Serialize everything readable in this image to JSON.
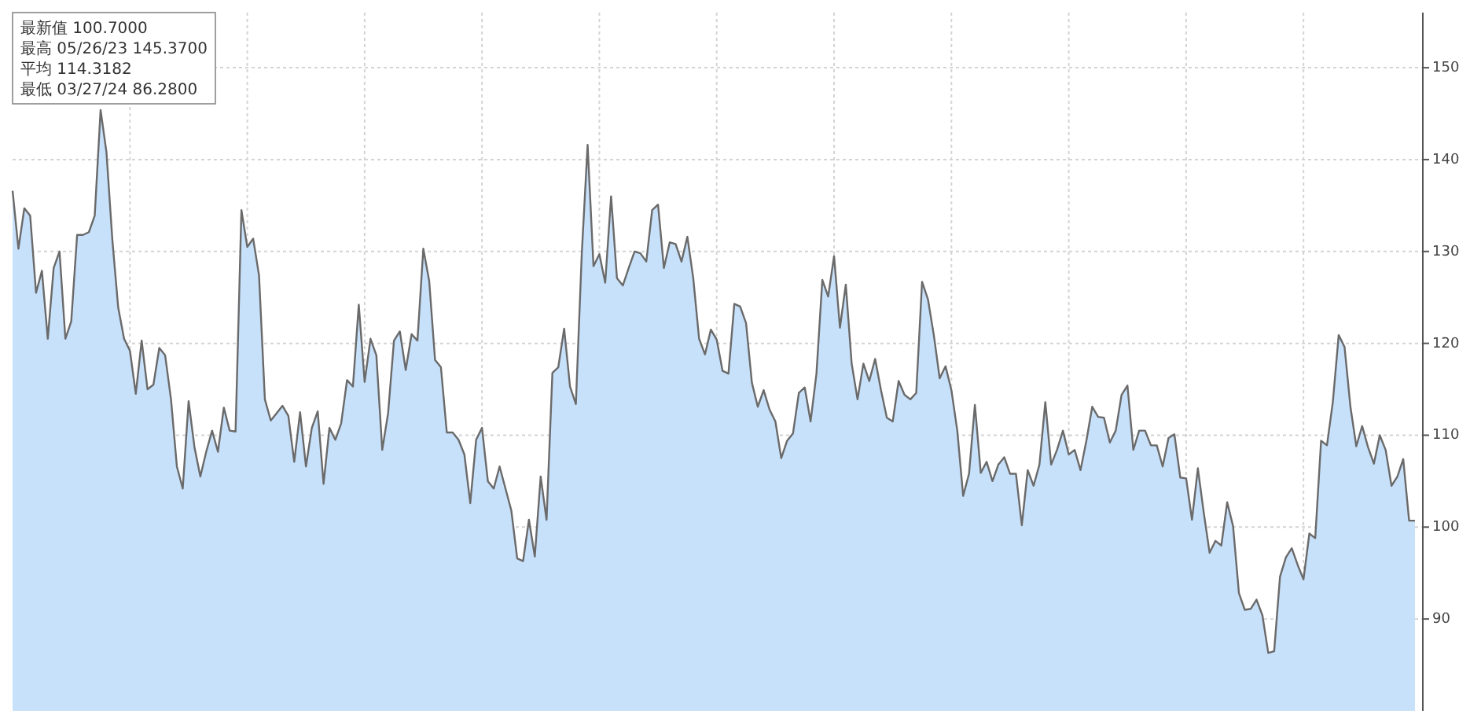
{
  "chart_data": {
    "type": "area",
    "annotations": [
      "最新值 100.7000",
      "最高 05/26/23 145.3700",
      "平均 114.3182",
      "最低 03/27/24 86.2800"
    ],
    "categories": [
      null,
      null,
      null,
      null,
      null,
      null,
      null,
      null,
      null,
      null,
      null,
      null,
      null,
      null,
      null,
      null,
      null,
      null,
      null,
      null,
      null,
      null,
      null,
      null,
      null,
      null,
      null,
      null,
      null,
      null,
      null,
      null,
      null,
      null,
      null,
      null,
      null,
      null,
      null,
      null,
      null,
      null,
      null,
      null,
      null,
      null,
      null,
      null,
      null,
      null,
      null,
      null,
      null,
      null,
      null,
      null,
      null,
      null,
      null,
      null,
      null,
      null,
      null,
      null,
      null,
      null,
      null,
      null,
      null,
      null,
      null,
      null,
      null,
      null,
      null,
      null,
      null,
      null,
      null,
      null,
      null,
      null,
      null,
      null,
      null,
      null,
      null,
      null,
      null,
      null,
      null,
      null,
      null,
      null,
      null,
      null,
      null,
      null,
      null,
      null,
      null,
      null,
      null,
      null,
      null,
      null,
      null,
      null,
      null,
      null,
      null,
      null,
      null,
      null,
      null,
      null,
      null,
      null,
      null,
      null,
      null,
      null,
      null,
      null,
      null,
      null,
      null,
      null,
      null,
      null,
      null,
      null,
      null,
      null,
      null,
      null,
      null,
      null,
      null,
      null,
      null,
      null,
      null,
      null,
      null,
      null,
      null,
      null,
      null,
      null,
      null,
      null,
      null,
      null,
      null,
      null,
      null,
      null,
      null,
      null,
      null,
      null,
      null,
      null,
      null,
      null,
      null,
      null,
      null,
      null,
      null,
      null,
      null,
      null,
      null,
      null,
      null,
      null,
      null,
      null,
      null,
      null,
      null,
      null,
      null,
      null,
      null,
      null,
      null,
      null,
      null,
      null,
      null,
      null,
      null,
      null,
      null,
      null,
      null,
      null,
      null,
      null,
      null,
      null,
      null,
      null,
      null,
      null,
      null,
      null,
      null,
      null,
      null,
      null,
      null,
      null,
      null,
      null,
      null,
      null,
      null,
      null,
      null,
      null,
      null,
      null,
      null,
      null,
      null,
      null,
      null,
      null,
      null,
      null,
      null,
      null,
      null,
      null,
      null,
      null
    ],
    "series": [
      {
        "color": "#c8e1fb",
        "values": [
          136.6,
          130.3,
          134.7,
          133.9,
          125.5,
          127.9,
          120.5,
          128.2,
          130.0,
          120.5,
          122.4,
          131.8,
          131.8,
          132.1,
          133.9,
          145.4,
          140.8,
          131.3,
          123.9,
          120.5,
          119.2,
          114.5,
          120.3,
          115.0,
          115.5,
          119.5,
          118.7,
          113.9,
          106.6,
          104.2,
          113.7,
          108.7,
          105.5,
          108.2,
          110.5,
          108.2,
          113.0,
          110.5,
          110.4,
          134.5,
          130.5,
          131.4,
          127.4,
          113.9,
          111.6,
          112.4,
          113.2,
          112.1,
          107.1,
          112.5,
          106.6,
          110.8,
          112.6,
          104.7,
          110.8,
          109.5,
          111.3,
          116.0,
          115.3,
          124.2,
          115.8,
          120.5,
          118.7,
          108.4,
          112.4,
          120.3,
          121.3,
          117.1,
          121.0,
          120.3,
          130.3,
          126.8,
          118.2,
          117.4,
          110.3,
          110.3,
          109.5,
          107.9,
          102.6,
          109.5,
          110.8,
          105.0,
          104.2,
          106.6,
          104.2,
          101.8,
          96.6,
          96.3,
          100.8,
          96.8,
          105.5,
          100.8,
          116.8,
          117.4,
          121.6,
          115.3,
          113.4,
          129.7,
          141.6,
          128.4,
          129.7,
          126.6,
          136.0,
          127.1,
          126.3,
          128.2,
          130.0,
          129.8,
          128.9,
          134.5,
          135.1,
          128.2,
          131.0,
          130.8,
          128.9,
          131.6,
          127.1,
          120.5,
          118.8,
          121.5,
          120.4,
          117.0,
          116.7,
          124.3,
          124.0,
          122.2,
          115.7,
          113.1,
          114.9,
          112.8,
          111.5,
          107.5,
          109.4,
          110.2,
          114.6,
          115.2,
          111.5,
          116.7,
          126.9,
          125.1,
          129.5,
          121.7,
          126.4,
          117.8,
          113.9,
          117.8,
          115.9,
          118.3,
          114.9,
          111.9,
          111.5,
          115.9,
          114.4,
          113.9,
          114.6,
          126.7,
          124.8,
          120.9,
          116.2,
          117.5,
          114.9,
          110.5,
          103.4,
          105.8,
          113.3,
          105.9,
          107.1,
          105.0,
          106.8,
          107.6,
          105.8,
          105.8,
          100.2,
          106.2,
          104.5,
          106.8,
          113.6,
          106.8,
          108.4,
          110.5,
          107.9,
          108.4,
          106.2,
          109.4,
          113.1,
          112.0,
          111.9,
          109.2,
          110.5,
          114.4,
          115.4,
          108.4,
          110.5,
          110.5,
          108.9,
          108.9,
          106.6,
          109.7,
          110.1,
          105.4,
          105.3,
          100.8,
          106.4,
          101.6,
          97.2,
          98.5,
          98.0,
          102.7,
          100.1,
          92.8,
          91.0,
          91.1,
          92.1,
          90.4,
          86.3,
          86.5,
          94.6,
          96.7,
          97.7,
          95.9,
          94.3,
          99.3,
          98.8,
          109.4,
          108.9,
          113.6,
          120.9,
          119.6,
          113.1,
          108.8,
          111.0,
          108.7,
          106.9,
          110.0,
          108.4,
          104.5,
          105.5,
          107.4,
          100.7,
          100.7
        ]
      }
    ],
    "ylim": [
      80,
      156
    ],
    "yticks": [
      90,
      100,
      110,
      120,
      130,
      140,
      150
    ],
    "grid": true
  }
}
